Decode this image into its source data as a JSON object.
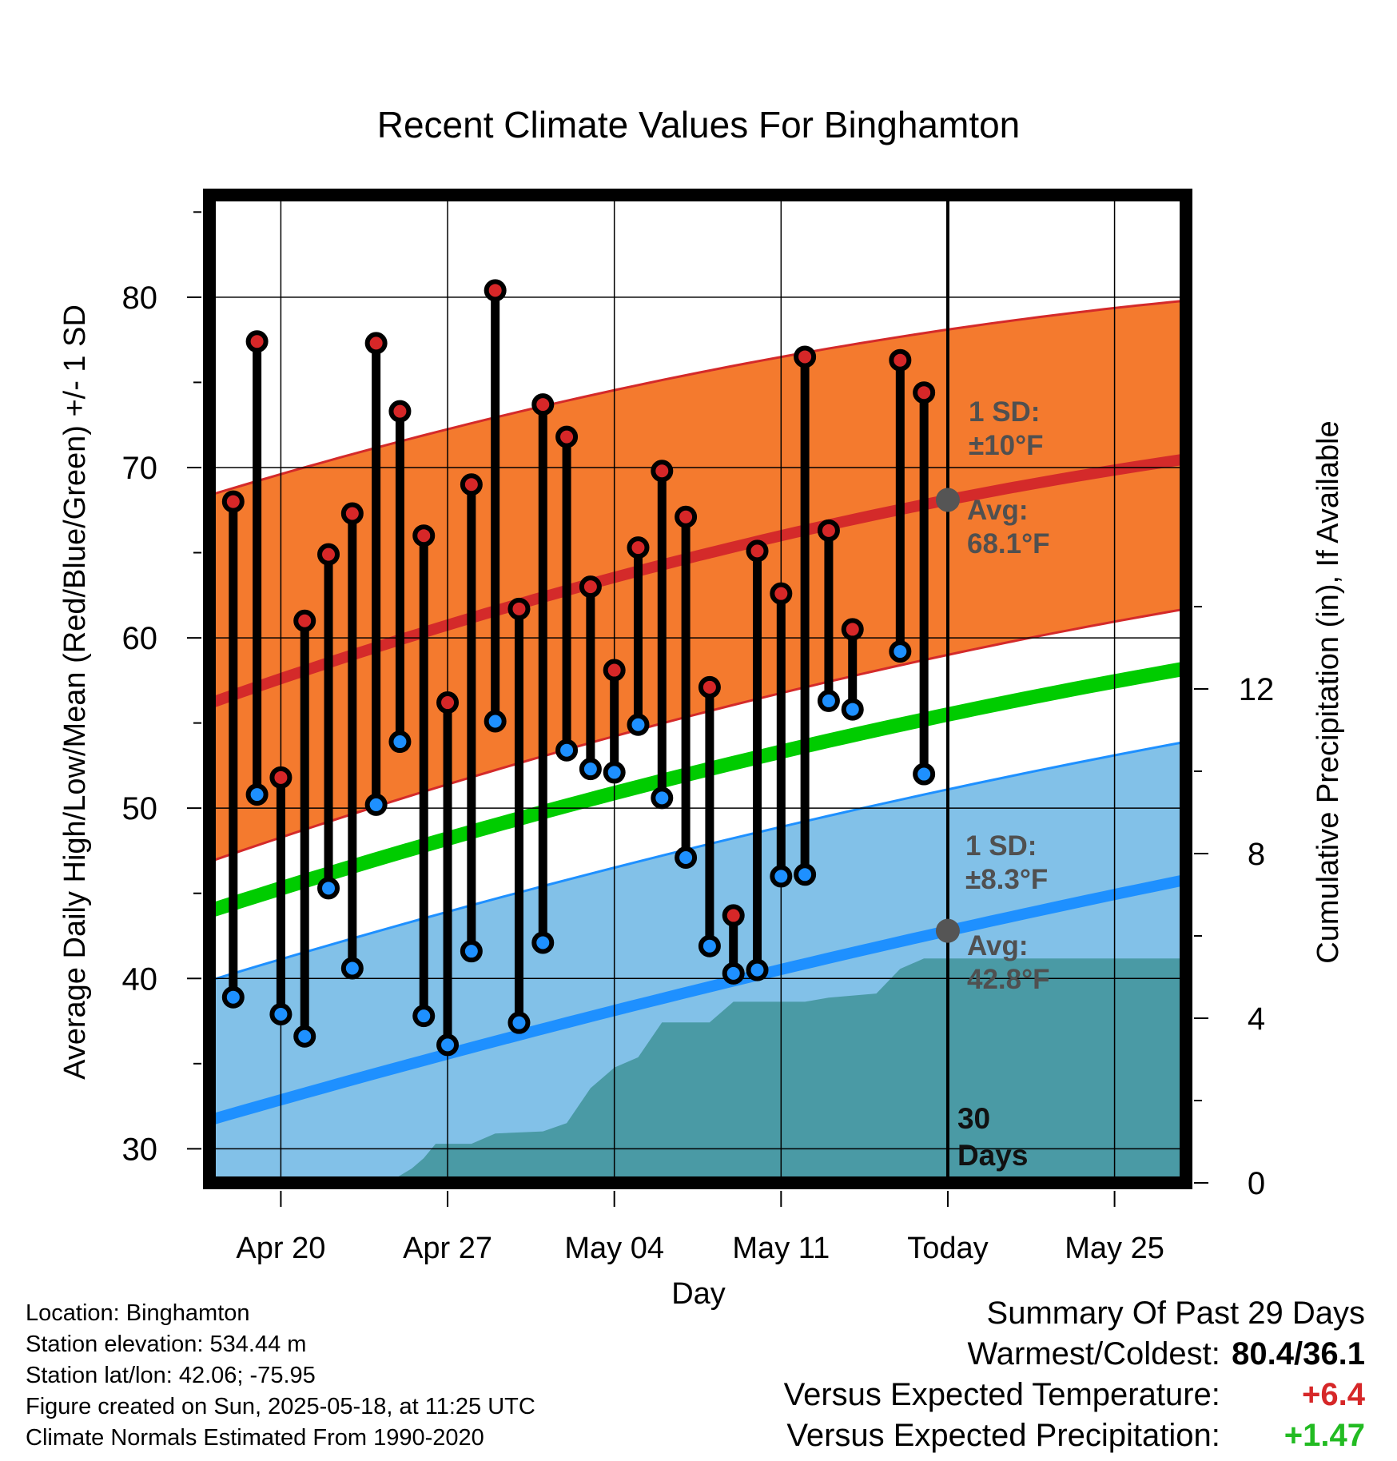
{
  "chart_data": {
    "type": "line",
    "title": "Recent Climate Values For Binghamton",
    "xlabel": "Day",
    "ylabel": "Average Daily High/Low/Mean (Red/Blue/Green) +/- 1 SD",
    "y2label": "Cumulative Precipitation (in), If Available",
    "ylim": [
      28,
      86
    ],
    "y_ticks": [
      30,
      40,
      50,
      60,
      70,
      80
    ],
    "y2lim": [
      0,
      24
    ],
    "y2_ticks": [
      0,
      4,
      8,
      12
    ],
    "x_range_days_from_apr20": [
      -3,
      38
    ],
    "x_ticks": [
      {
        "day": 0,
        "label": "Apr 20"
      },
      {
        "day": 7,
        "label": "Apr 27"
      },
      {
        "day": 14,
        "label": "May 04"
      },
      {
        "day": 21,
        "label": "May 11"
      },
      {
        "day": 28,
        "label": "Today"
      },
      {
        "day": 35,
        "label": "May 25"
      }
    ],
    "today_day": 28,
    "today_label_lines": [
      "30",
      "Days"
    ],
    "normals": {
      "days": [
        -2.7,
        28,
        38
      ],
      "high_avg": [
        56.3,
        68.1,
        70.5
      ],
      "high_sd_upper": [
        68.5,
        78.1,
        79.8
      ],
      "high_sd_lower": [
        47.0,
        59.0,
        61.7
      ],
      "low_avg": [
        31.8,
        42.8,
        45.8
      ],
      "low_sd_upper": [
        40.0,
        51.1,
        53.9
      ],
      "low_sd_lower": [
        28,
        28,
        28
      ],
      "mean": [
        44.1,
        55.5,
        58.2
      ]
    },
    "annotations": {
      "high_sd_label": [
        "1 SD:",
        "±10°F"
      ],
      "high_avg_label": [
        "Avg:",
        "68.1°F"
      ],
      "low_sd_label": [
        "1 SD:",
        "±8.3°F"
      ],
      "low_avg_label": [
        "Avg:",
        "42.8°F"
      ]
    },
    "series": [
      {
        "name": "High",
        "color": "#d62728",
        "points": [
          {
            "day": -2,
            "value": 68.0
          },
          {
            "day": -1,
            "value": 77.4
          },
          {
            "day": 0,
            "value": 51.8
          },
          {
            "day": 1,
            "value": 61.0
          },
          {
            "day": 2,
            "value": 64.9
          },
          {
            "day": 3,
            "value": 67.3
          },
          {
            "day": 4,
            "value": 77.3
          },
          {
            "day": 5,
            "value": 73.3
          },
          {
            "day": 6,
            "value": 66.0
          },
          {
            "day": 7,
            "value": 56.2
          },
          {
            "day": 8,
            "value": 69.0
          },
          {
            "day": 9,
            "value": 80.4
          },
          {
            "day": 10,
            "value": 61.7
          },
          {
            "day": 11,
            "value": 73.7
          },
          {
            "day": 12,
            "value": 71.8
          },
          {
            "day": 13,
            "value": 63.0
          },
          {
            "day": 14,
            "value": 58.1
          },
          {
            "day": 15,
            "value": 65.3
          },
          {
            "day": 16,
            "value": 69.8
          },
          {
            "day": 17,
            "value": 67.1
          },
          {
            "day": 18,
            "value": 57.1
          },
          {
            "day": 19,
            "value": 43.7
          },
          {
            "day": 20,
            "value": 65.1
          },
          {
            "day": 21,
            "value": 62.6
          },
          {
            "day": 22,
            "value": 76.5
          },
          {
            "day": 23,
            "value": 66.3
          },
          {
            "day": 24,
            "value": 60.5
          },
          {
            "day": 26,
            "value": 76.3
          },
          {
            "day": 27,
            "value": 74.4
          }
        ]
      },
      {
        "name": "Low",
        "color": "#1e90ff",
        "points": [
          {
            "day": -2,
            "value": 38.9
          },
          {
            "day": -1,
            "value": 50.8
          },
          {
            "day": 0,
            "value": 37.9
          },
          {
            "day": 1,
            "value": 36.6
          },
          {
            "day": 2,
            "value": 45.3
          },
          {
            "day": 3,
            "value": 40.6
          },
          {
            "day": 4,
            "value": 50.2
          },
          {
            "day": 5,
            "value": 53.9
          },
          {
            "day": 6,
            "value": 37.8
          },
          {
            "day": 7,
            "value": 36.1
          },
          {
            "day": 8,
            "value": 41.6
          },
          {
            "day": 9,
            "value": 55.1
          },
          {
            "day": 10,
            "value": 37.4
          },
          {
            "day": 11,
            "value": 42.1
          },
          {
            "day": 12,
            "value": 53.4
          },
          {
            "day": 13,
            "value": 52.3
          },
          {
            "day": 14,
            "value": 52.1
          },
          {
            "day": 15,
            "value": 54.9
          },
          {
            "day": 16,
            "value": 50.6
          },
          {
            "day": 17,
            "value": 47.1
          },
          {
            "day": 18,
            "value": 41.9
          },
          {
            "day": 19,
            "value": 40.3
          },
          {
            "day": 20,
            "value": 40.5
          },
          {
            "day": 21,
            "value": 46.0
          },
          {
            "day": 22,
            "value": 46.1
          },
          {
            "day": 23,
            "value": 56.3
          },
          {
            "day": 24,
            "value": 55.8
          },
          {
            "day": 26,
            "value": 59.2
          },
          {
            "day": 27,
            "value": 52.0
          }
        ]
      },
      {
        "name": "Cumulative Precipitation",
        "color": "#4a9aa5",
        "points": [
          {
            "day": 4.5,
            "value": 0
          },
          {
            "day": 5.5,
            "value": 0.35
          },
          {
            "day": 6,
            "value": 0.6
          },
          {
            "day": 6.5,
            "value": 0.95
          },
          {
            "day": 8,
            "value": 0.95
          },
          {
            "day": 9,
            "value": 1.2
          },
          {
            "day": 11,
            "value": 1.25
          },
          {
            "day": 12,
            "value": 1.45
          },
          {
            "day": 13,
            "value": 2.3
          },
          {
            "day": 14,
            "value": 2.8
          },
          {
            "day": 15,
            "value": 3.05
          },
          {
            "day": 16,
            "value": 3.9
          },
          {
            "day": 18,
            "value": 3.9
          },
          {
            "day": 19,
            "value": 4.4
          },
          {
            "day": 22,
            "value": 4.4
          },
          {
            "day": 23,
            "value": 4.5
          },
          {
            "day": 25,
            "value": 4.6
          },
          {
            "day": 26,
            "value": 5.2
          },
          {
            "day": 27,
            "value": 5.45
          },
          {
            "day": 38,
            "value": 5.45
          }
        ]
      }
    ]
  },
  "footer": {
    "location": "Location: Binghamton",
    "elevation": "Station elevation: 534.44 m",
    "latlon": "Station lat/lon: 42.06; -75.95",
    "created": "Figure created on Sun, 2025-05-18, at 11:25 UTC",
    "normals": "Climate Normals Estimated From 1990-2020"
  },
  "summary": {
    "title": "Summary Of Past 29 Days",
    "warmest_label": "Warmest/Coldest:",
    "warmest_value": "80.4/36.1",
    "temp_label": "Versus Expected Temperature:",
    "temp_value": "+6.4",
    "temp_color": "#d62728",
    "precip_label": "Versus Expected Precipitation:",
    "precip_value": "+1.47",
    "precip_color": "#22bb22"
  },
  "colors": {
    "high_band": "#f47a2e",
    "high_line": "#d42a2a",
    "low_band": "#82c1e8",
    "low_line": "#1e90ff",
    "mean_line": "#00cc00",
    "precip_fill": "#4a9aa5",
    "today_marker": "#555555",
    "annotation_text": "#505050"
  }
}
